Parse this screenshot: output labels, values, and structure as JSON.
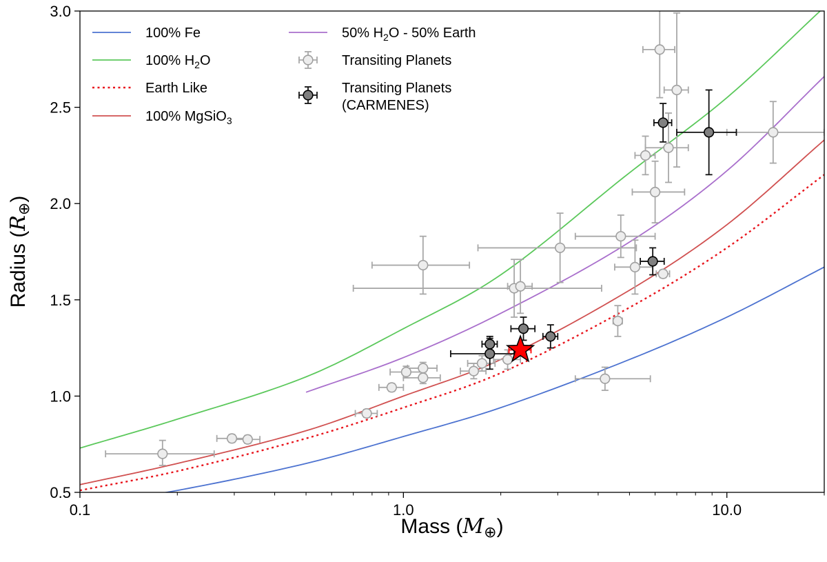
{
  "chart_data": {
    "type": "scatter",
    "xscale": "log",
    "xlim": [
      0.1,
      20
    ],
    "ylim": [
      0.5,
      3.0
    ],
    "xlabel": "Mass",
    "xlabel_symbol": "M",
    "xlabel_sub": "⊕",
    "ylabel": "Radius",
    "ylabel_symbol": "R",
    "ylabel_sub": "⊕",
    "xticks": [
      0.1,
      1.0,
      10.0
    ],
    "xtick_labels": [
      "0.1",
      "1.0",
      "10.0"
    ],
    "yticks": [
      0.5,
      1.0,
      1.5,
      2.0,
      2.5,
      3.0
    ],
    "ytick_labels": [
      "0.5",
      "1.0",
      "1.5",
      "2.0",
      "2.5",
      "3.0"
    ],
    "grid": false,
    "legend_position": "top-left",
    "curves": [
      {
        "name": "100% Fe",
        "label_parts": [
          "100% Fe"
        ],
        "color": "#4c72d0",
        "dash": "solid",
        "x": [
          0.1,
          0.2,
          0.5,
          1.0,
          2.0,
          5.0,
          10.0,
          20.0
        ],
        "y": [
          0.43,
          0.51,
          0.65,
          0.79,
          0.94,
          1.19,
          1.41,
          1.67
        ]
      },
      {
        "name": "100% H2O",
        "label_parts": [
          "100% H",
          "2",
          "O"
        ],
        "color": "#5bc85b",
        "dash": "solid",
        "x": [
          0.1,
          0.2,
          0.5,
          1.0,
          2.0,
          5.0,
          10.0,
          20.0
        ],
        "y": [
          0.73,
          0.88,
          1.1,
          1.35,
          1.63,
          2.16,
          2.55,
          3.02
        ]
      },
      {
        "name": "Earth Like",
        "label_parts": [
          "Earth Like"
        ],
        "color": "#e8141c",
        "dash": "dotted",
        "x": [
          0.1,
          0.2,
          0.5,
          1.0,
          2.0,
          5.0,
          10.0,
          20.0
        ],
        "y": [
          0.51,
          0.61,
          0.78,
          0.94,
          1.12,
          1.46,
          1.77,
          2.15
        ]
      },
      {
        "name": "100% MgSiO3",
        "label_parts": [
          "100% MgSiO",
          "3",
          ""
        ],
        "color": "#d05050",
        "dash": "solid",
        "x": [
          0.1,
          0.2,
          0.5,
          1.0,
          2.0,
          5.0,
          10.0,
          20.0
        ],
        "y": [
          0.54,
          0.65,
          0.82,
          1.0,
          1.19,
          1.55,
          1.89,
          2.33
        ]
      },
      {
        "name": "50% H2O - 50% Earth",
        "label_parts": [
          "50% H",
          "2",
          "O - 50% Earth"
        ],
        "color": "#a96fcc",
        "dash": "solid",
        "x": [
          0.5,
          1.0,
          2.0,
          5.0,
          10.0,
          20.0
        ],
        "y": [
          1.02,
          1.2,
          1.43,
          1.8,
          2.17,
          2.66
        ]
      }
    ],
    "series": [
      {
        "name": "Transiting Planets",
        "face": "#ededed",
        "edge": "#a0a0a0",
        "errcolor": "#a8a8a8",
        "points": [
          {
            "x": 0.18,
            "y": 0.7,
            "xerr": [
              0.06,
              0.08
            ],
            "yerr": [
              0.06,
              0.07
            ]
          },
          {
            "x": 0.295,
            "y": 0.78,
            "xerr": [
              0.03,
              0.03
            ],
            "yerr": [
              0.02,
              0.02
            ]
          },
          {
            "x": 0.33,
            "y": 0.775,
            "xerr": [
              0.03,
              0.03
            ],
            "yerr": [
              0.02,
              0.02
            ]
          },
          {
            "x": 0.77,
            "y": 0.91,
            "xerr": [
              0.06,
              0.06
            ],
            "yerr": [
              0.02,
              0.02
            ]
          },
          {
            "x": 0.92,
            "y": 1.045,
            "xerr": [
              0.08,
              0.08
            ],
            "yerr": [
              0.02,
              0.02
            ]
          },
          {
            "x": 1.02,
            "y": 1.125,
            "xerr": [
              0.11,
              0.13
            ],
            "yerr": [
              0.03,
              0.03
            ]
          },
          {
            "x": 1.15,
            "y": 1.145,
            "xerr": [
              0.12,
              0.12
            ],
            "yerr": [
              0.03,
              0.03
            ]
          },
          {
            "x": 1.15,
            "y": 1.095,
            "xerr": [
              0.15,
              0.15
            ],
            "yerr": [
              0.03,
              0.03
            ]
          },
          {
            "x": 1.15,
            "y": 1.68,
            "xerr": [
              0.35,
              0.45
            ],
            "yerr": [
              0.15,
              0.15
            ]
          },
          {
            "x": 1.65,
            "y": 1.13,
            "xerr": [
              0.15,
              0.15
            ],
            "yerr": [
              0.04,
              0.04
            ]
          },
          {
            "x": 1.75,
            "y": 1.17,
            "xerr": [
              0.17,
              0.17
            ],
            "yerr": [
              0.04,
              0.04
            ]
          },
          {
            "x": 2.1,
            "y": 1.19,
            "xerr": [
              0.2,
              0.2
            ],
            "yerr": [
              0.05,
              0.05
            ]
          },
          {
            "x": 2.2,
            "y": 1.56,
            "xerr": [
              1.5,
              1.9
            ],
            "yerr": [
              0.15,
              0.15
            ]
          },
          {
            "x": 2.3,
            "y": 1.57,
            "xerr": [
              0.2,
              0.2
            ],
            "yerr": [
              0.14,
              0.14
            ]
          },
          {
            "x": 3.05,
            "y": 1.77,
            "xerr": [
              1.35,
              2.2
            ],
            "yerr": [
              0.18,
              0.18
            ]
          },
          {
            "x": 4.2,
            "y": 1.09,
            "xerr": [
              0.8,
              1.6
            ],
            "yerr": [
              0.06,
              0.06
            ]
          },
          {
            "x": 4.6,
            "y": 1.39,
            "xerr": [
              0.15,
              0.15
            ],
            "yerr": [
              0.08,
              0.08
            ]
          },
          {
            "x": 4.7,
            "y": 1.83,
            "xerr": [
              1.3,
              1.3
            ],
            "yerr": [
              0.11,
              0.11
            ]
          },
          {
            "x": 5.2,
            "y": 1.67,
            "xerr": [
              0.7,
              0.7
            ],
            "yerr": [
              0.14,
              0.14
            ]
          },
          {
            "x": 5.6,
            "y": 2.25,
            "xerr": [
              0.4,
              0.4
            ],
            "yerr": [
              0.1,
              0.1
            ]
          },
          {
            "x": 6.0,
            "y": 2.06,
            "xerr": [
              0.9,
              1.4
            ],
            "yerr": [
              0.16,
              0.16
            ]
          },
          {
            "x": 6.35,
            "y": 1.635,
            "xerr": [
              0.3,
              0.3
            ],
            "yerr": [
              0.02,
              0.02
            ]
          },
          {
            "x": 6.6,
            "y": 2.29,
            "xerr": [
              1.0,
              1.0
            ],
            "yerr": [
              0.18,
              0.18
            ]
          },
          {
            "x": 6.2,
            "y": 2.8,
            "xerr": [
              0.7,
              0.7
            ],
            "yerr": [
              0.25,
              0.25
            ]
          },
          {
            "x": 7.0,
            "y": 2.59,
            "xerr": [
              0.6,
              0.6
            ],
            "yerr": [
              0.4,
              0.4
            ]
          },
          {
            "x": 13.9,
            "y": 2.37,
            "xerr": [
              3.9,
              6.1
            ],
            "yerr": [
              0.16,
              0.16
            ]
          }
        ]
      },
      {
        "name": "Transiting Planets (CARMENES)",
        "label_lines": [
          "Transiting Planets",
          "(CARMENES)"
        ],
        "face": "#808080",
        "edge": "#000000",
        "errcolor": "#111111",
        "points": [
          {
            "x": 1.85,
            "y": 1.27,
            "xerr": [
              0.1,
              0.1
            ],
            "yerr": [
              0.04,
              0.04
            ]
          },
          {
            "x": 1.85,
            "y": 1.22,
            "xerr": [
              0.45,
              0.35
            ],
            "yerr": [
              0.08,
              0.08
            ]
          },
          {
            "x": 2.35,
            "y": 1.35,
            "xerr": [
              0.2,
              0.2
            ],
            "yerr": [
              0.06,
              0.06
            ]
          },
          {
            "x": 2.85,
            "y": 1.31,
            "xerr": [
              0.15,
              0.15
            ],
            "yerr": [
              0.06,
              0.06
            ]
          },
          {
            "x": 5.9,
            "y": 1.7,
            "xerr": [
              0.5,
              0.5
            ],
            "yerr": [
              0.07,
              0.07
            ]
          },
          {
            "x": 6.35,
            "y": 2.42,
            "xerr": [
              0.4,
              0.4
            ],
            "yerr": [
              0.1,
              0.1
            ]
          },
          {
            "x": 8.8,
            "y": 2.37,
            "xerr": [
              1.8,
              1.9
            ],
            "yerr": [
              0.22,
              0.22
            ]
          }
        ]
      }
    ],
    "highlight": {
      "x": 2.3,
      "y": 1.24,
      "xerr": [
        0.18,
        0.18
      ],
      "yerr": [
        0.03,
        0.03
      ],
      "marker": "star",
      "color": "#ff0000",
      "edge": "#000000"
    }
  }
}
